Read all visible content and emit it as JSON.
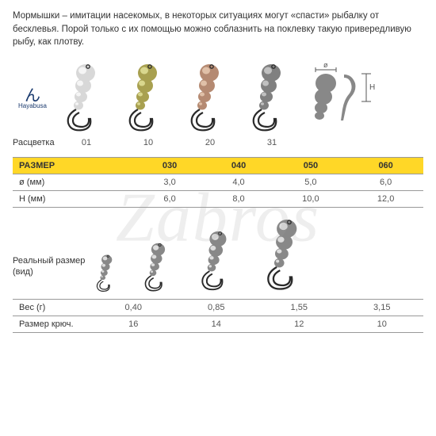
{
  "intro_text": "Мормышки – имитации насекомых, в некоторых ситуациях могут «спасти» рыбалку от бесклевья. Порой только с их помощью можно соблазнить на поклевку такую привередливую рыбу, как плотву.",
  "brand": "Hayabusa",
  "colorway_label": "Расцветка",
  "colorways": [
    {
      "code": "01",
      "body": "#d8d8d8",
      "shine": "#f5f5f5"
    },
    {
      "code": "10",
      "body": "#a8a050",
      "shine": "#d9d78e"
    },
    {
      "code": "20",
      "body": "#b58a72",
      "shine": "#e0c0a8"
    },
    {
      "code": "31",
      "body": "#808080",
      "shine": "#c0c0c0"
    }
  ],
  "dim_diagram": {
    "diameter_symbol": "ø",
    "height_symbol": "H",
    "fill": "#888"
  },
  "size_table": {
    "header": [
      "РАЗМЕР",
      "030",
      "040",
      "050",
      "060"
    ],
    "rows": [
      [
        "ø (мм)",
        "3,0",
        "4,0",
        "5,0",
        "6,0"
      ],
      [
        "Н (мм)",
        "6,0",
        "8,0",
        "10,0",
        "12,0"
      ]
    ]
  },
  "real_label": "Реальный размер (вид)",
  "real_sizes": [
    {
      "scale": 0.55
    },
    {
      "scale": 0.72
    },
    {
      "scale": 0.88
    },
    {
      "scale": 1.05
    }
  ],
  "weight_table": {
    "rows": [
      [
        "Вес (г)",
        "0,40",
        "0,85",
        "1,55",
        "3,15"
      ],
      [
        "Размер крюч.",
        "16",
        "14",
        "12",
        "10"
      ]
    ]
  },
  "watermark": "Zabros",
  "hook_color": "#2a2a2a",
  "real_body": "#888",
  "real_shine": "#ddd",
  "table_header_bg": "#ffd727"
}
